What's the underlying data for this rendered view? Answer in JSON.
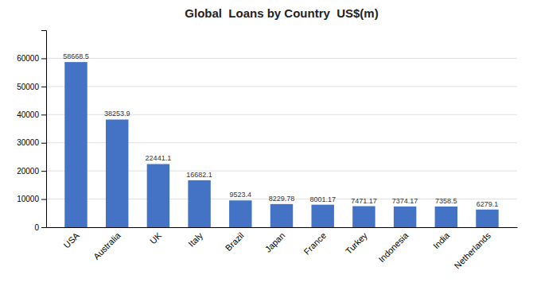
{
  "chart_data": {
    "type": "bar",
    "title": "Global  Loans by Country  US$(m)",
    "categories": [
      "USA",
      "Australia",
      "UK",
      "Italy",
      "Brazil",
      "Japan",
      "France",
      "Turkey",
      "Indonesia",
      "India",
      "Netherlands"
    ],
    "values": [
      58668.5,
      38253.9,
      22441.1,
      16682.1,
      9523.4,
      8229.78,
      8001.17,
      7471.17,
      7374.17,
      7358.5,
      6279.1
    ],
    "color": "#4472C4",
    "ylim": [
      0,
      70000
    ],
    "yticks": [
      0,
      10000,
      20000,
      30000,
      40000,
      50000,
      60000
    ],
    "grid": true,
    "data_labels": true
  }
}
